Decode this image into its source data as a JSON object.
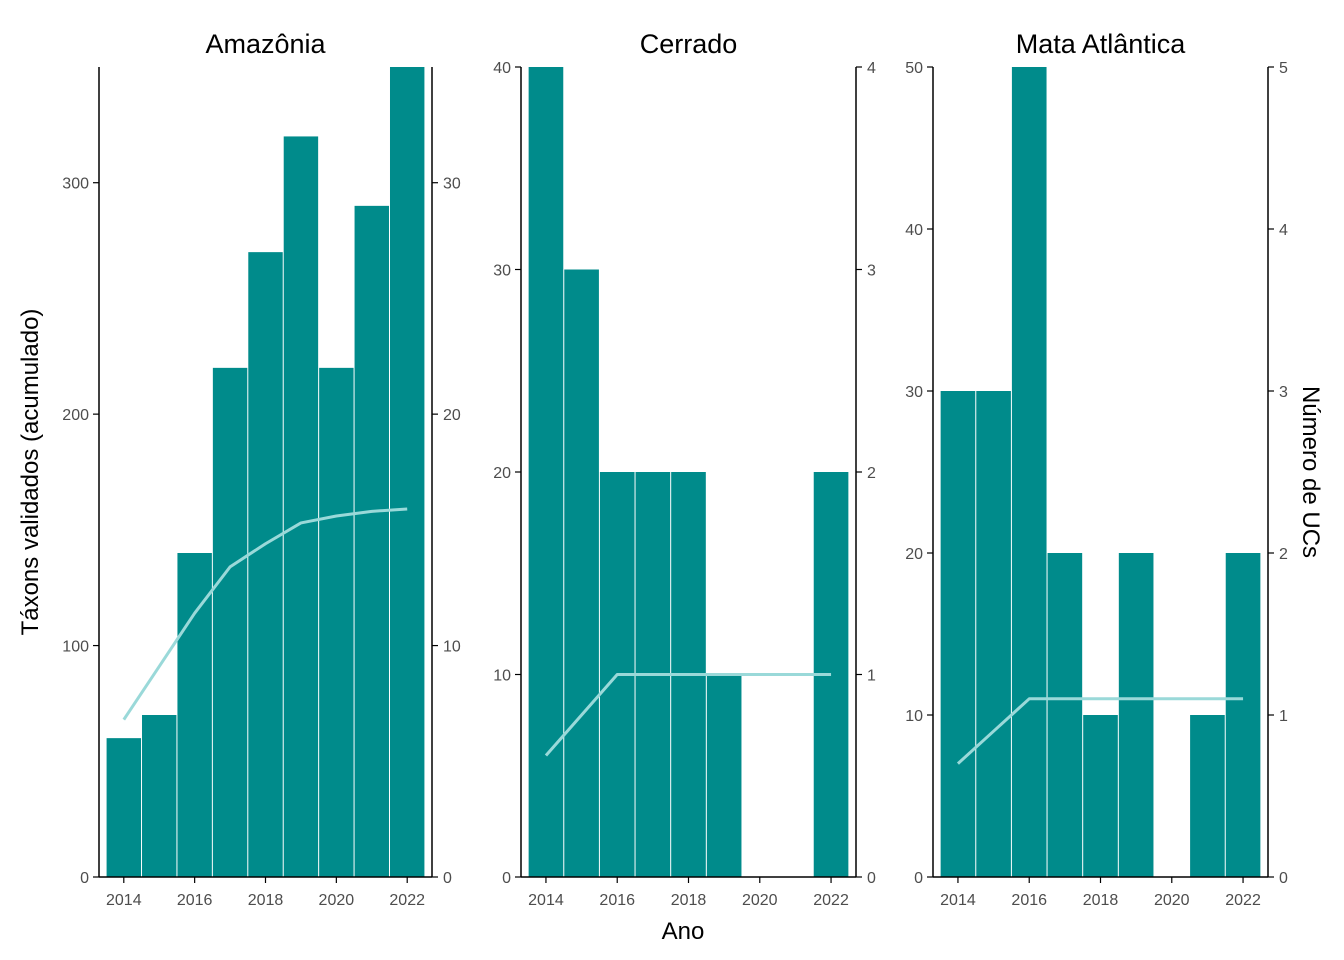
{
  "colors": {
    "bar": "#008b8b",
    "line": "#9ad9d9",
    "axis": "#000000",
    "tick_label": "#4d4d4d"
  },
  "labels": {
    "x_axis": "Ano",
    "y_left": "Táxons validados (acumulado)",
    "y_right": "Número de UCs"
  },
  "chart_data": [
    {
      "type": "bar",
      "title": "Amazônia",
      "x": [
        2014,
        2015,
        2016,
        2017,
        2018,
        2019,
        2020,
        2021,
        2022
      ],
      "bar_values": [
        60,
        70,
        140,
        220,
        270,
        320,
        220,
        290,
        350
      ],
      "line_values": [
        6.8,
        9.1,
        11.4,
        13.4,
        14.4,
        15.3,
        15.6,
        15.8,
        15.9
      ],
      "ylim_left": [
        0,
        350
      ],
      "ylim_right": [
        0,
        35
      ],
      "yticks_left": [
        0,
        100,
        200,
        300
      ],
      "yticks_right": [
        0,
        10,
        20,
        30
      ],
      "xticks": [
        2014,
        2016,
        2018,
        2020,
        2022
      ]
    },
    {
      "type": "bar",
      "title": "Cerrado",
      "x": [
        2014,
        2015,
        2016,
        2017,
        2018,
        2019,
        2020,
        2021,
        2022
      ],
      "bar_values": [
        40,
        30,
        20,
        20,
        20,
        10,
        0,
        0,
        20
      ],
      "line_values": [
        0.6,
        0.8,
        1.0,
        1.0,
        1.0,
        1.0,
        1.0,
        1.0,
        1.0
      ],
      "ylim_left": [
        0,
        40
      ],
      "ylim_right": [
        0,
        4
      ],
      "yticks_left": [
        0,
        10,
        20,
        30,
        40
      ],
      "yticks_right": [
        0,
        1,
        2,
        3,
        4
      ],
      "xticks": [
        2014,
        2016,
        2018,
        2020,
        2022
      ]
    },
    {
      "type": "bar",
      "title": "Mata Atlântica",
      "x": [
        2014,
        2015,
        2016,
        2017,
        2018,
        2019,
        2020,
        2021,
        2022
      ],
      "bar_values": [
        30,
        30,
        50,
        20,
        10,
        20,
        0,
        10,
        20
      ],
      "line_values": [
        0.7,
        0.9,
        1.1,
        1.1,
        1.1,
        1.1,
        1.1,
        1.1,
        1.1
      ],
      "ylim_left": [
        0,
        50
      ],
      "ylim_right": [
        0,
        5
      ],
      "yticks_left": [
        0,
        10,
        20,
        30,
        40,
        50
      ],
      "yticks_right": [
        0,
        1,
        2,
        3,
        4,
        5
      ],
      "xticks": [
        2014,
        2016,
        2018,
        2020,
        2022
      ]
    }
  ]
}
